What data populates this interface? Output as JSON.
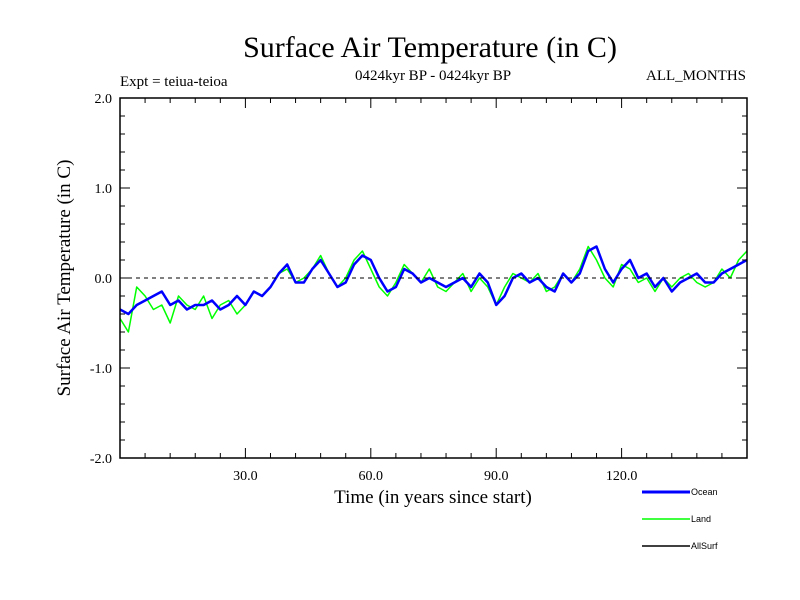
{
  "chart_data": {
    "type": "line",
    "title": "Surface Air Temperature (in C)",
    "subtitle_left": "Expt = teiua-teioa",
    "subtitle_center": "0424kyr BP - 0424kyr BP",
    "subtitle_right": "ALL_MONTHS",
    "xlabel": "Time (in years since start)",
    "ylabel": "Surface Air Temperature (in C)",
    "xlim": [
      0,
      150
    ],
    "ylim": [
      -2.0,
      2.0
    ],
    "x_ticks": [
      30,
      60,
      90,
      120
    ],
    "x_tick_labels": [
      "30.0",
      "60.0",
      "90.0",
      "120.0"
    ],
    "y_ticks": [
      -2.0,
      -1.0,
      0.0,
      1.0,
      2.0
    ],
    "y_tick_labels": [
      "-2.0",
      "-1.0",
      "0.0",
      "1.0",
      "2.0"
    ],
    "reference_line": 0.0,
    "series": [
      {
        "name": "Land",
        "color": "#00ff00",
        "x": [
          0,
          2,
          4,
          6,
          8,
          10,
          12,
          14,
          16,
          18,
          20,
          22,
          24,
          26,
          28,
          30,
          32,
          34,
          36,
          38,
          40,
          42,
          44,
          46,
          48,
          50,
          52,
          54,
          56,
          58,
          60,
          62,
          64,
          66,
          68,
          70,
          72,
          74,
          76,
          78,
          80,
          82,
          84,
          86,
          88,
          90,
          92,
          94,
          96,
          98,
          100,
          102,
          104,
          106,
          108,
          110,
          112,
          114,
          116,
          118,
          120,
          122,
          124,
          126,
          128,
          130,
          132,
          134,
          136,
          138,
          140,
          142,
          144,
          146,
          148,
          150
        ],
        "values": [
          -0.45,
          -0.6,
          -0.1,
          -0.2,
          -0.35,
          -0.3,
          -0.5,
          -0.2,
          -0.3,
          -0.35,
          -0.2,
          -0.45,
          -0.3,
          -0.25,
          -0.4,
          -0.3,
          -0.15,
          -0.2,
          -0.1,
          0.05,
          0.1,
          -0.05,
          0.0,
          0.1,
          0.25,
          0.05,
          -0.1,
          0.0,
          0.2,
          0.3,
          0.1,
          -0.1,
          -0.2,
          -0.05,
          0.15,
          0.05,
          -0.05,
          0.1,
          -0.1,
          -0.15,
          -0.05,
          0.05,
          -0.15,
          0.0,
          -0.1,
          -0.3,
          -0.1,
          0.05,
          0.0,
          -0.05,
          0.05,
          -0.15,
          -0.1,
          0.05,
          -0.05,
          0.1,
          0.35,
          0.2,
          0.0,
          -0.1,
          0.15,
          0.1,
          -0.05,
          0.0,
          -0.15,
          0.0,
          -0.1,
          0.0,
          0.05,
          -0.05,
          -0.1,
          -0.05,
          0.1,
          0.0,
          0.2,
          0.3
        ]
      },
      {
        "name": "Ocean",
        "color": "#0000ff",
        "x": [
          0,
          2,
          4,
          6,
          8,
          10,
          12,
          14,
          16,
          18,
          20,
          22,
          24,
          26,
          28,
          30,
          32,
          34,
          36,
          38,
          40,
          42,
          44,
          46,
          48,
          50,
          52,
          54,
          56,
          58,
          60,
          62,
          64,
          66,
          68,
          70,
          72,
          74,
          76,
          78,
          80,
          82,
          84,
          86,
          88,
          90,
          92,
          94,
          96,
          98,
          100,
          102,
          104,
          106,
          108,
          110,
          112,
          114,
          116,
          118,
          120,
          122,
          124,
          126,
          128,
          130,
          132,
          134,
          136,
          138,
          140,
          142,
          144,
          146,
          148,
          150
        ],
        "values": [
          -0.35,
          -0.4,
          -0.3,
          -0.25,
          -0.2,
          -0.15,
          -0.3,
          -0.25,
          -0.35,
          -0.3,
          -0.3,
          -0.25,
          -0.35,
          -0.3,
          -0.2,
          -0.3,
          -0.15,
          -0.2,
          -0.1,
          0.05,
          0.15,
          -0.05,
          -0.05,
          0.1,
          0.2,
          0.05,
          -0.1,
          -0.05,
          0.15,
          0.25,
          0.2,
          0.0,
          -0.15,
          -0.1,
          0.1,
          0.05,
          -0.05,
          0.0,
          -0.05,
          -0.1,
          -0.05,
          0.0,
          -0.1,
          0.05,
          -0.05,
          -0.3,
          -0.2,
          0.0,
          0.05,
          -0.05,
          0.0,
          -0.1,
          -0.15,
          0.05,
          -0.05,
          0.05,
          0.3,
          0.35,
          0.1,
          -0.05,
          0.1,
          0.2,
          0.0,
          0.05,
          -0.1,
          0.0,
          -0.15,
          -0.05,
          0.0,
          0.05,
          -0.05,
          -0.05,
          0.05,
          0.1,
          0.15,
          0.2
        ]
      },
      {
        "name": "AllSurf",
        "color": "#000000",
        "x": [],
        "values": []
      }
    ],
    "legend_position": "bottom-right",
    "legend_entries": [
      "Ocean",
      "Land",
      "AllSurf"
    ]
  }
}
